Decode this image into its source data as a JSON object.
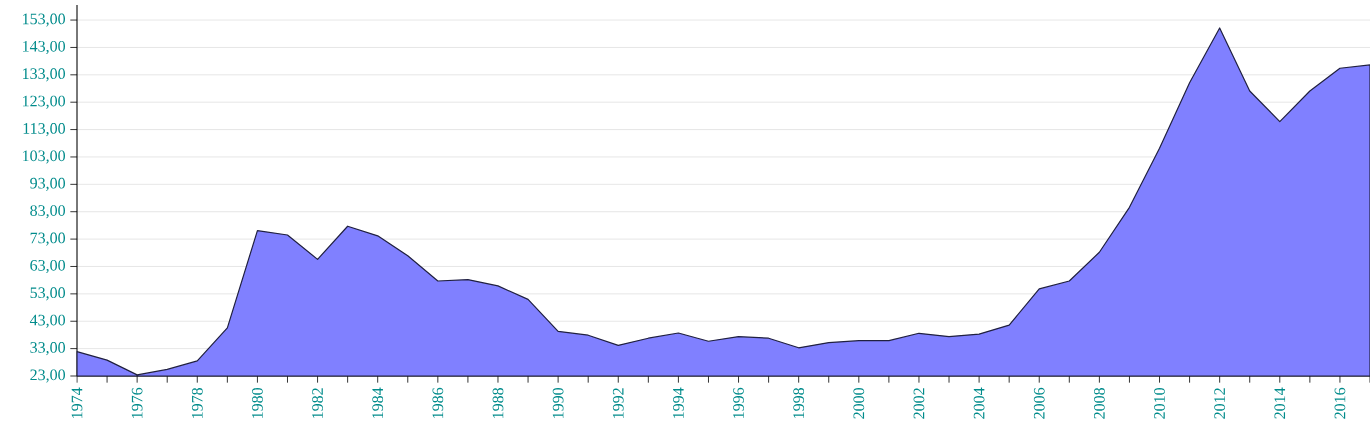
{
  "chart_data": {
    "type": "area",
    "color": "#8080ff",
    "x": [
      1974,
      1975,
      1976,
      1977,
      1978,
      1979,
      1980,
      1981,
      1982,
      1983,
      1984,
      1985,
      1986,
      1987,
      1988,
      1989,
      1990,
      1991,
      1992,
      1993,
      1994,
      1995,
      1996,
      1997,
      1998,
      1999,
      2000,
      2001,
      2002,
      2003,
      2004,
      2005,
      2006,
      2007,
      2008,
      2009,
      2010,
      2011,
      2012,
      2013,
      2014,
      2015,
      2016,
      2017
    ],
    "values": [
      31.9,
      28.8,
      23.4,
      25.4,
      28.5,
      40.6,
      76.1,
      74.5,
      65.6,
      77.7,
      74.2,
      66.9,
      57.7,
      58.2,
      55.9,
      51.0,
      39.3,
      37.9,
      34.2,
      36.8,
      38.7,
      35.7,
      37.4,
      36.8,
      33.3,
      35.2,
      35.9,
      35.9,
      38.6,
      37.4,
      38.3,
      41.6,
      54.8,
      57.7,
      68.2,
      84.6,
      106.2,
      130.1,
      150.1,
      127.1,
      115.9,
      127.1,
      135.4,
      136.6
    ],
    "xlim": [
      1974,
      2017
    ],
    "ylim": [
      23,
      158.5
    ],
    "xticks": [
      1974,
      {
        "value": 1975,
        "label": null
      },
      1976,
      {
        "value": 1977,
        "label": null
      },
      1978,
      {
        "value": 1979,
        "label": null
      },
      1980,
      {
        "value": 1981,
        "label": null
      },
      1982,
      {
        "value": 1983,
        "label": null
      },
      1984,
      {
        "value": 1985,
        "label": null
      },
      1986,
      {
        "value": 1987,
        "label": null
      },
      1988,
      {
        "value": 1989,
        "label": null
      },
      1990,
      {
        "value": 1991,
        "label": null
      },
      1992,
      {
        "value": 1993,
        "label": null
      },
      1994,
      {
        "value": 1995,
        "label": null
      },
      1996,
      {
        "value": 1997,
        "label": null
      },
      1998,
      {
        "value": 1999,
        "label": null
      },
      2000,
      {
        "value": 2001,
        "label": null
      },
      2002,
      {
        "value": 2003,
        "label": null
      },
      2004,
      {
        "value": 2005,
        "label": null
      },
      2006,
      {
        "value": 2007,
        "label": null
      },
      2008,
      {
        "value": 2009,
        "label": null
      },
      2010,
      {
        "value": 2011,
        "label": null
      },
      2012,
      {
        "value": 2013,
        "label": null
      },
      2014,
      {
        "value": 2015,
        "label": null
      },
      2016,
      {
        "value": 2017,
        "label": null
      }
    ],
    "yticks": [
      {
        "value": 23,
        "label": "23,00"
      },
      {
        "value": 33,
        "label": "33,00"
      },
      {
        "value": 43,
        "label": "43,00"
      },
      {
        "value": 53,
        "label": "53,00"
      },
      {
        "value": 63,
        "label": "63,00"
      },
      {
        "value": 73,
        "label": "73,00"
      },
      {
        "value": 83,
        "label": "83,00"
      },
      {
        "value": 93,
        "label": "93,00"
      },
      {
        "value": 103,
        "label": "103,00"
      },
      {
        "value": 113,
        "label": "113,00"
      },
      {
        "value": 123,
        "label": "123,00"
      },
      {
        "value": 133,
        "label": "133,00"
      },
      {
        "value": 143,
        "label": "143,00"
      },
      {
        "value": 153,
        "label": "153,00"
      }
    ],
    "grid": "y"
  }
}
